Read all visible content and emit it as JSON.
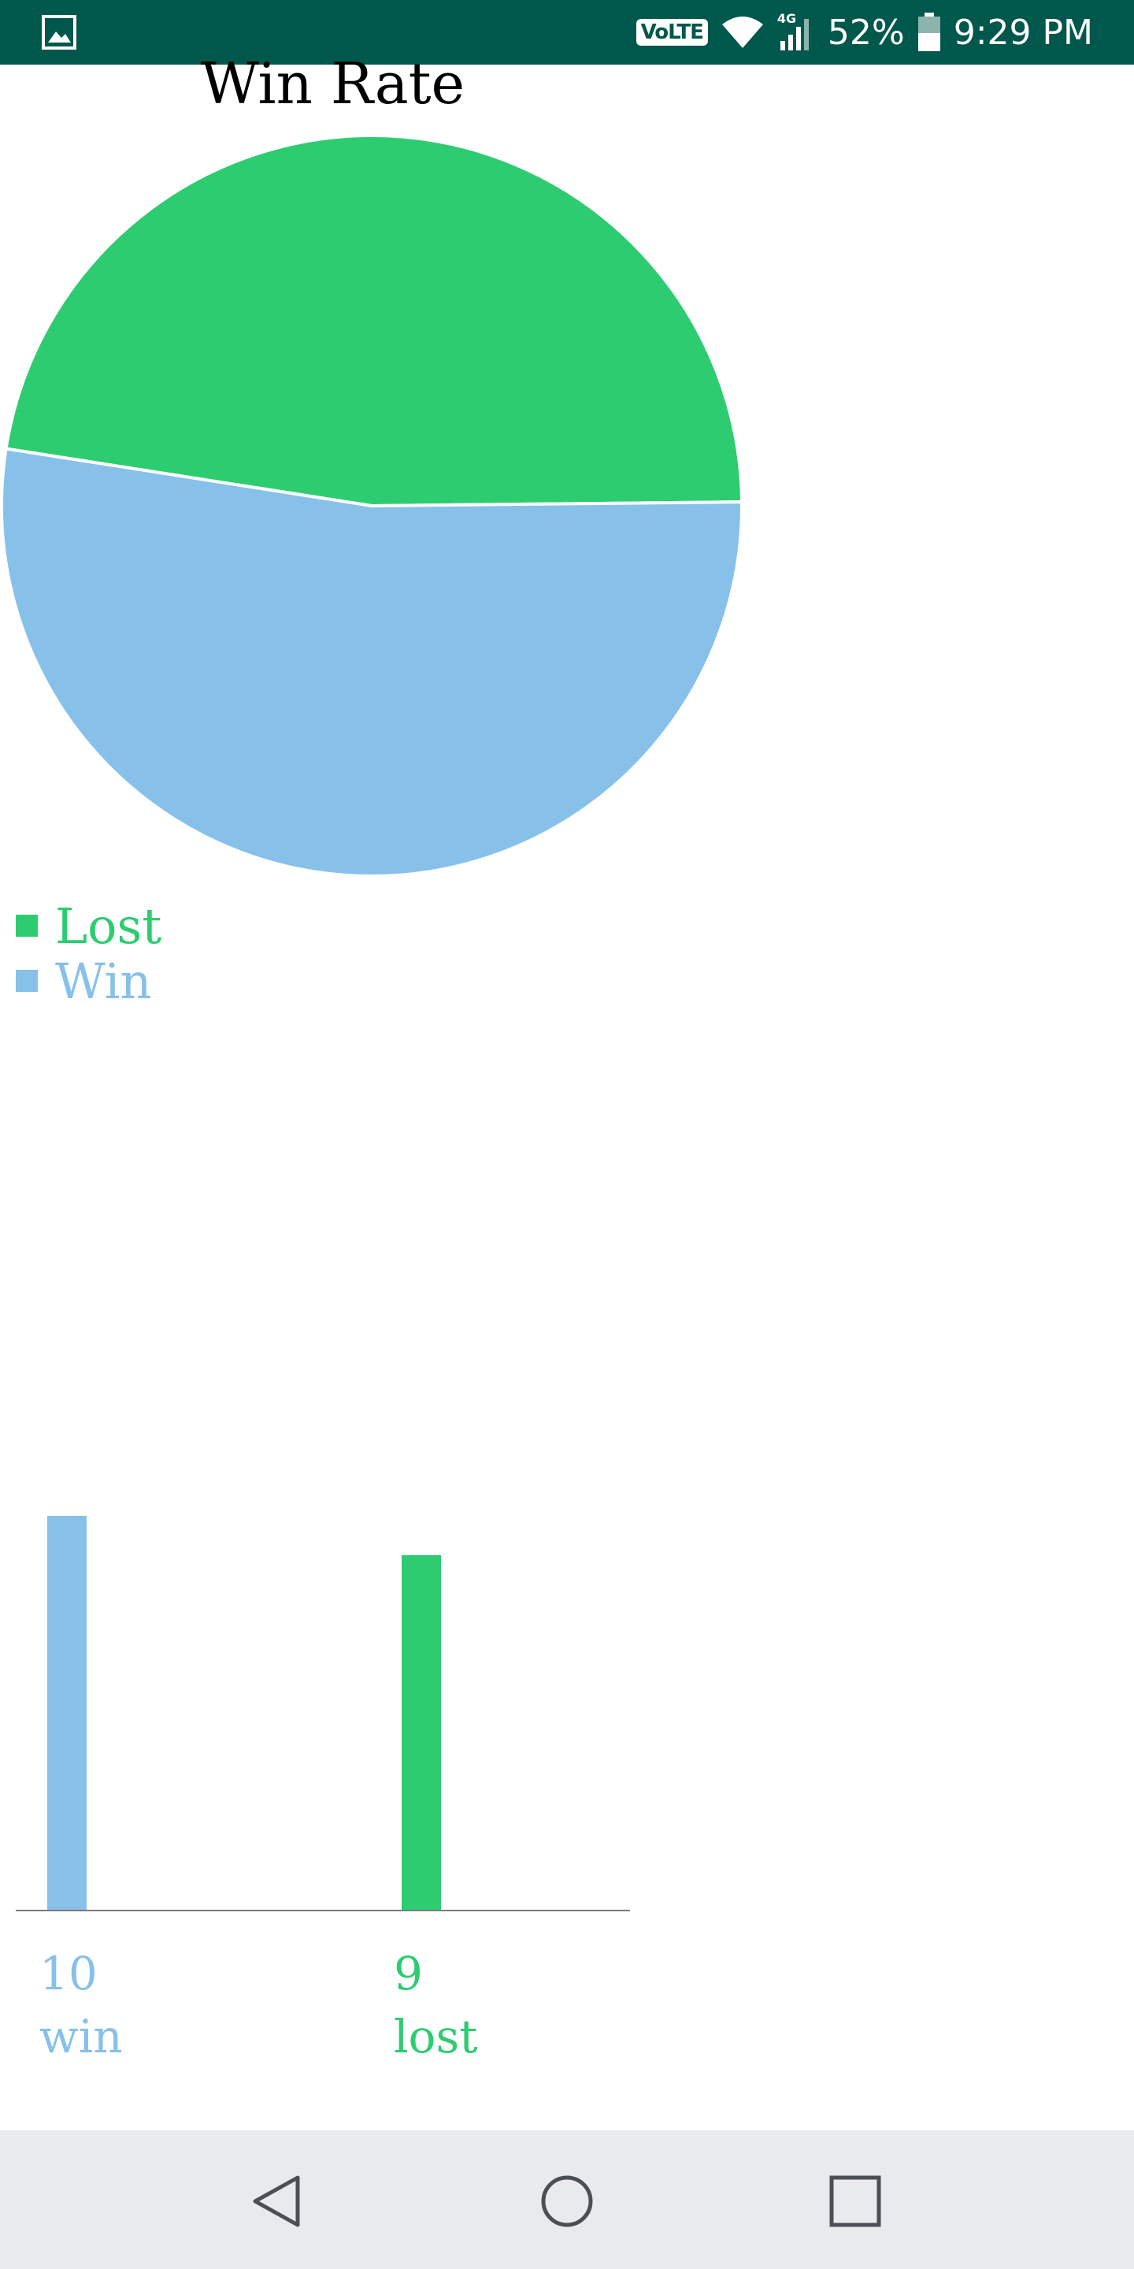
{
  "status_bar": {
    "volte": "VoLTE",
    "network": "4G",
    "battery": "52%",
    "time": "9:29 PM",
    "icons": [
      "gallery-icon",
      "volte-icon",
      "wifi-icon",
      "signal-icon",
      "battery-icon"
    ]
  },
  "chart_data": [
    {
      "type": "pie",
      "title": "Win Rate",
      "labels": [
        "Lost",
        "Win"
      ],
      "values": [
        9,
        10
      ],
      "colors": [
        "#2ecc71",
        "#87c1ea"
      ],
      "legend_position": "bottom-left"
    },
    {
      "type": "bar",
      "categories": [
        "win",
        "lost"
      ],
      "values": [
        10,
        9
      ],
      "colors": [
        "#87c1ea",
        "#2ecc71"
      ],
      "ylim": [
        0,
        10
      ]
    }
  ],
  "nav_bar": {
    "icons": [
      "back-icon",
      "home-icon",
      "recents-icon"
    ]
  }
}
